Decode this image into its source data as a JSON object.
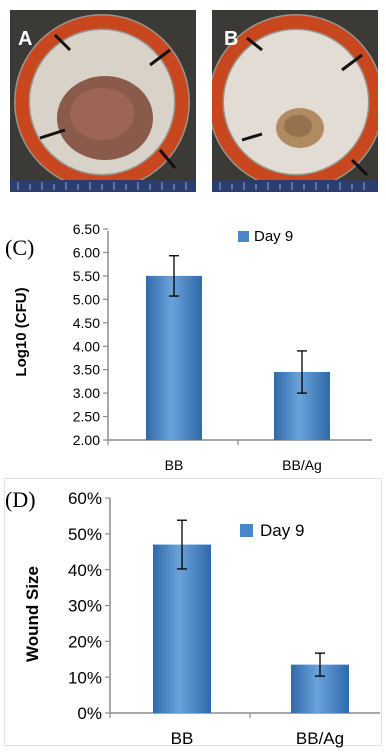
{
  "photos": [
    {
      "label": "A"
    },
    {
      "label": "B"
    }
  ],
  "colors": {
    "bar": "#4a86c8",
    "bar_light": "#6aa2da",
    "bar_dark": "#2f6aaa",
    "axis": "#8c8c8c",
    "text": "#000000",
    "ring": "#c8471e"
  },
  "chart_data": [
    {
      "panel": "(C)",
      "type": "bar",
      "categories": [
        "BB",
        "BB/Ag"
      ],
      "series": [
        {
          "name": "Day 9",
          "values": [
            5.5,
            3.45
          ],
          "errors": [
            0.43,
            0.45
          ]
        }
      ],
      "ylabel": "Log10 (CFU)",
      "xlabel": "",
      "ylim": [
        2.0,
        6.5
      ],
      "yticks": [
        "2.00",
        "2.50",
        "3.00",
        "3.50",
        "4.00",
        "4.50",
        "5.00",
        "5.50",
        "6.00",
        "6.50"
      ],
      "grid": false,
      "legend": "top-right"
    },
    {
      "panel": "(D)",
      "type": "bar",
      "categories": [
        "BB",
        "BB/Ag"
      ],
      "series": [
        {
          "name": "Day 9",
          "values": [
            0.47,
            0.135
          ],
          "errors": [
            0.068,
            0.032
          ]
        }
      ],
      "ylabel": "Wound Size",
      "xlabel": "",
      "ylim": [
        0,
        0.6
      ],
      "yticks": [
        "0%",
        "10%",
        "20%",
        "30%",
        "40%",
        "50%",
        "60%"
      ],
      "grid": false,
      "legend": "top-right"
    }
  ]
}
